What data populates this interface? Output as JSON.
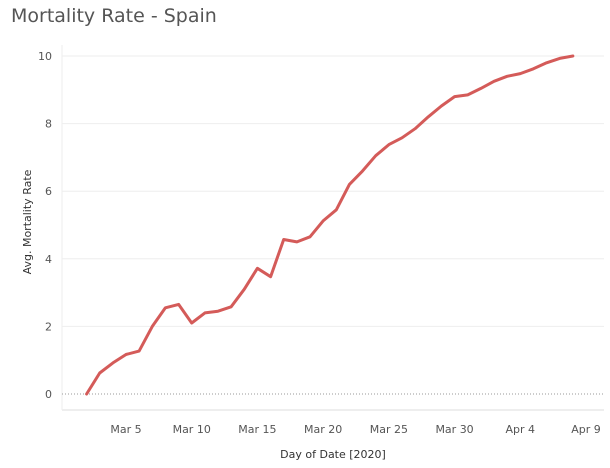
{
  "chart_data": {
    "type": "line",
    "title": "Mortality Rate - Spain",
    "xlabel": "Day of Date [2020]",
    "ylabel": "Avg. Mortality Rate",
    "ylim": [
      0,
      10
    ],
    "yticks": [
      0,
      2,
      4,
      6,
      8,
      10
    ],
    "xticks": [
      {
        "label": "Mar 5",
        "date": "2020-03-05"
      },
      {
        "label": "Mar 10",
        "date": "2020-03-10"
      },
      {
        "label": "Mar 15",
        "date": "2020-03-15"
      },
      {
        "label": "Mar 20",
        "date": "2020-03-20"
      },
      {
        "label": "Mar 25",
        "date": "2020-03-25"
      },
      {
        "label": "Mar 30",
        "date": "2020-03-30"
      },
      {
        "label": "Apr 4",
        "date": "2020-04-04"
      },
      {
        "label": "Apr 9",
        "date": "2020-04-09"
      }
    ],
    "grid": true,
    "line_color": "#d45b59",
    "series": [
      {
        "x": [
          "2020-03-02",
          "2020-03-03",
          "2020-03-04",
          "2020-03-05",
          "2020-03-06",
          "2020-03-07",
          "2020-03-08",
          "2020-03-09",
          "2020-03-10",
          "2020-03-11",
          "2020-03-12",
          "2020-03-13",
          "2020-03-14",
          "2020-03-15",
          "2020-03-16",
          "2020-03-17",
          "2020-03-18",
          "2020-03-19",
          "2020-03-20",
          "2020-03-21",
          "2020-03-22",
          "2020-03-23",
          "2020-03-24",
          "2020-03-25",
          "2020-03-26",
          "2020-03-27",
          "2020-03-28",
          "2020-03-29",
          "2020-03-30",
          "2020-03-31",
          "2020-04-01",
          "2020-04-02",
          "2020-04-03",
          "2020-04-04",
          "2020-04-05",
          "2020-04-06",
          "2020-04-07",
          "2020-04-08"
        ],
        "values": [
          0.0,
          0.62,
          0.92,
          1.17,
          1.27,
          2.0,
          2.55,
          2.65,
          2.1,
          2.4,
          2.45,
          2.58,
          3.1,
          3.72,
          3.47,
          4.57,
          4.5,
          4.65,
          5.12,
          5.45,
          6.2,
          6.6,
          7.05,
          7.38,
          7.58,
          7.85,
          8.2,
          8.52,
          8.8,
          8.85,
          9.04,
          9.25,
          9.4,
          9.48,
          9.62,
          9.8,
          9.93,
          10.0
        ]
      }
    ]
  }
}
